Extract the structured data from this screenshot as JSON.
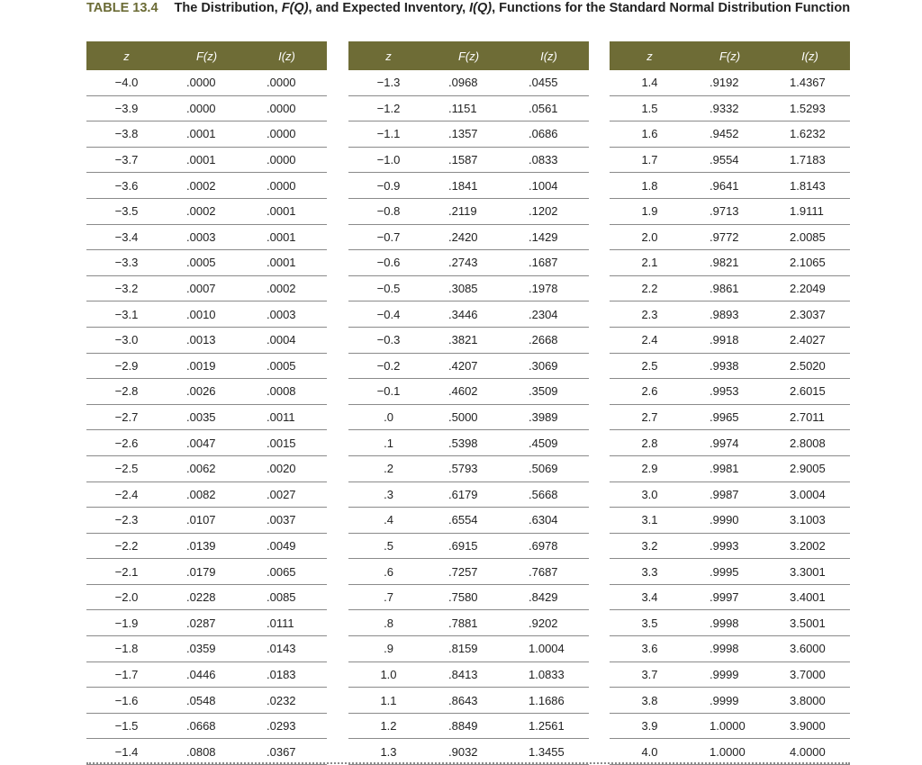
{
  "caption": {
    "number": "TABLE 13.4",
    "text_prefix": "The Distribution, ",
    "fq": "F(Q)",
    "text_mid": ", and Expected Inventory, ",
    "iq": "I(Q)",
    "text_suffix": ", Functions for the Standard Normal Distribution Function"
  },
  "columns": {
    "z": "z",
    "fz": "F(z)",
    "iz": "I(z)"
  },
  "header_color": "#6e6c36",
  "panels": [
    {
      "rows": [
        [
          "−4.0",
          ".0000",
          ".0000"
        ],
        [
          "−3.9",
          ".0000",
          ".0000"
        ],
        [
          "−3.8",
          ".0001",
          ".0000"
        ],
        [
          "−3.7",
          ".0001",
          ".0000"
        ],
        [
          "−3.6",
          ".0002",
          ".0000"
        ],
        [
          "−3.5",
          ".0002",
          ".0001"
        ],
        [
          "−3.4",
          ".0003",
          ".0001"
        ],
        [
          "−3.3",
          ".0005",
          ".0001"
        ],
        [
          "−3.2",
          ".0007",
          ".0002"
        ],
        [
          "−3.1",
          ".0010",
          ".0003"
        ],
        [
          "−3.0",
          ".0013",
          ".0004"
        ],
        [
          "−2.9",
          ".0019",
          ".0005"
        ],
        [
          "−2.8",
          ".0026",
          ".0008"
        ],
        [
          "−2.7",
          ".0035",
          ".0011"
        ],
        [
          "−2.6",
          ".0047",
          ".0015"
        ],
        [
          "−2.5",
          ".0062",
          ".0020"
        ],
        [
          "−2.4",
          ".0082",
          ".0027"
        ],
        [
          "−2.3",
          ".0107",
          ".0037"
        ],
        [
          "−2.2",
          ".0139",
          ".0049"
        ],
        [
          "−2.1",
          ".0179",
          ".0065"
        ],
        [
          "−2.0",
          ".0228",
          ".0085"
        ],
        [
          "−1.9",
          ".0287",
          ".0111"
        ],
        [
          "−1.8",
          ".0359",
          ".0143"
        ],
        [
          "−1.7",
          ".0446",
          ".0183"
        ],
        [
          "−1.6",
          ".0548",
          ".0232"
        ],
        [
          "−1.5",
          ".0668",
          ".0293"
        ],
        [
          "−1.4",
          ".0808",
          ".0367"
        ]
      ]
    },
    {
      "rows": [
        [
          "−1.3",
          ".0968",
          ".0455"
        ],
        [
          "−1.2",
          ".1151",
          ".0561"
        ],
        [
          "−1.1",
          ".1357",
          ".0686"
        ],
        [
          "−1.0",
          ".1587",
          ".0833"
        ],
        [
          "−0.9",
          ".1841",
          ".1004"
        ],
        [
          "−0.8",
          ".2119",
          ".1202"
        ],
        [
          "−0.7",
          ".2420",
          ".1429"
        ],
        [
          "−0.6",
          ".2743",
          ".1687"
        ],
        [
          "−0.5",
          ".3085",
          ".1978"
        ],
        [
          "−0.4",
          ".3446",
          ".2304"
        ],
        [
          "−0.3",
          ".3821",
          ".2668"
        ],
        [
          "−0.2",
          ".4207",
          ".3069"
        ],
        [
          "−0.1",
          ".4602",
          ".3509"
        ],
        [
          ".0",
          ".5000",
          ".3989"
        ],
        [
          ".1",
          ".5398",
          ".4509"
        ],
        [
          ".2",
          ".5793",
          ".5069"
        ],
        [
          ".3",
          ".6179",
          ".5668"
        ],
        [
          ".4",
          ".6554",
          ".6304"
        ],
        [
          ".5",
          ".6915",
          ".6978"
        ],
        [
          ".6",
          ".7257",
          ".7687"
        ],
        [
          ".7",
          ".7580",
          ".8429"
        ],
        [
          ".8",
          ".7881",
          ".9202"
        ],
        [
          ".9",
          ".8159",
          "1.0004"
        ],
        [
          "1.0",
          ".8413",
          "1.0833"
        ],
        [
          "1.1",
          ".8643",
          "1.1686"
        ],
        [
          "1.2",
          ".8849",
          "1.2561"
        ],
        [
          "1.3",
          ".9032",
          "1.3455"
        ]
      ]
    },
    {
      "rows": [
        [
          "1.4",
          ".9192",
          "1.4367"
        ],
        [
          "1.5",
          ".9332",
          "1.5293"
        ],
        [
          "1.6",
          ".9452",
          "1.6232"
        ],
        [
          "1.7",
          ".9554",
          "1.7183"
        ],
        [
          "1.8",
          ".9641",
          "1.8143"
        ],
        [
          "1.9",
          ".9713",
          "1.9111"
        ],
        [
          "2.0",
          ".9772",
          "2.0085"
        ],
        [
          "2.1",
          ".9821",
          "2.1065"
        ],
        [
          "2.2",
          ".9861",
          "2.2049"
        ],
        [
          "2.3",
          ".9893",
          "2.3037"
        ],
        [
          "2.4",
          ".9918",
          "2.4027"
        ],
        [
          "2.5",
          ".9938",
          "2.5020"
        ],
        [
          "2.6",
          ".9953",
          "2.6015"
        ],
        [
          "2.7",
          ".9965",
          "2.7011"
        ],
        [
          "2.8",
          ".9974",
          "2.8008"
        ],
        [
          "2.9",
          ".9981",
          "2.9005"
        ],
        [
          "3.0",
          ".9987",
          "3.0004"
        ],
        [
          "3.1",
          ".9990",
          "3.1003"
        ],
        [
          "3.2",
          ".9993",
          "3.2002"
        ],
        [
          "3.3",
          ".9995",
          "3.3001"
        ],
        [
          "3.4",
          ".9997",
          "3.4001"
        ],
        [
          "3.5",
          ".9998",
          "3.5001"
        ],
        [
          "3.6",
          ".9998",
          "3.6000"
        ],
        [
          "3.7",
          ".9999",
          "3.7000"
        ],
        [
          "3.8",
          ".9999",
          "3.8000"
        ],
        [
          "3.9",
          "1.0000",
          "3.9000"
        ],
        [
          "4.0",
          "1.0000",
          "4.0000"
        ]
      ]
    }
  ]
}
